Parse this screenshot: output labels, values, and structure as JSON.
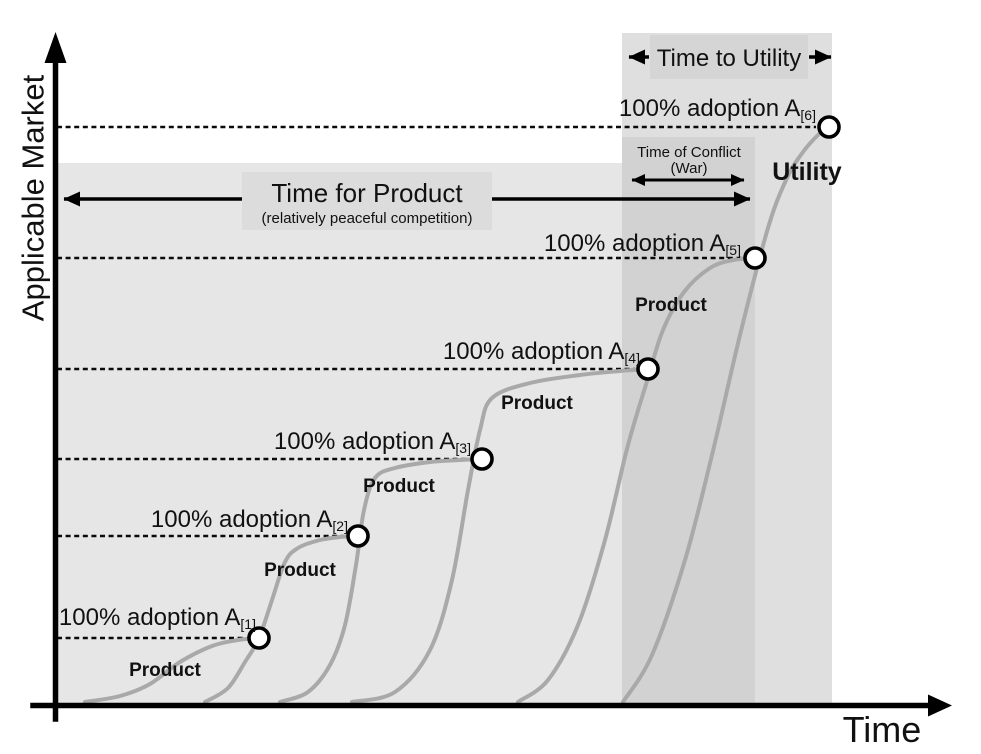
{
  "axes": {
    "y_label": "Applicable Market",
    "x_label": "Time"
  },
  "annotations": {
    "time_for_product": {
      "title": "Time for Product",
      "subtitle": "(relatively peaceful competition)"
    },
    "time_to_utility": {
      "label": "Time to Utility"
    },
    "time_of_conflict": {
      "line1": "Time of Conflict",
      "line2": "(War)"
    }
  },
  "colors": {
    "product_region": "#e6e6e6",
    "utility_band": "#dfdfdf",
    "conflict_overlap": "#d2d2d2",
    "label_box": "#dcdcdc",
    "banner_box": "#d5d5d5",
    "curve": "#a9a9a9",
    "ink": "#111111"
  },
  "chart_data": {
    "type": "line",
    "title": "",
    "xlabel": "Time",
    "ylabel": "Applicable Market",
    "description": "Six successive S-shaped diffusion curves; each activity evolves until 100% adoption of that act. Early stages are Product (relatively peaceful competition); the final curve reaches Utility after a time of conflict (war).",
    "grid": false,
    "curves": [
      {
        "name": "A[1]",
        "stage_label": "Product",
        "adoption_label": "100% adoption A",
        "adoption_sub": "[1]",
        "points": [
          [
            85,
            702
          ],
          [
            120,
            696
          ],
          [
            150,
            684
          ],
          [
            180,
            662
          ],
          [
            212,
            646
          ],
          [
            238,
            640
          ],
          [
            259,
            638
          ]
        ]
      },
      {
        "name": "A[2]",
        "stage_label": "Product",
        "adoption_label": "100% adoption A",
        "adoption_sub": "[2]",
        "points": [
          [
            205,
            702
          ],
          [
            228,
            688
          ],
          [
            245,
            662
          ],
          [
            259,
            638
          ],
          [
            272,
            600
          ],
          [
            285,
            562
          ],
          [
            298,
            548
          ],
          [
            320,
            540
          ],
          [
            340,
            537
          ],
          [
            358,
            536
          ]
        ]
      },
      {
        "name": "A[3]",
        "stage_label": "Product",
        "adoption_label": "100% adoption A",
        "adoption_sub": "[3]",
        "points": [
          [
            280,
            702
          ],
          [
            308,
            692
          ],
          [
            330,
            665
          ],
          [
            345,
            625
          ],
          [
            356,
            565
          ],
          [
            364,
            510
          ],
          [
            375,
            478
          ],
          [
            395,
            468
          ],
          [
            430,
            462
          ],
          [
            460,
            460
          ],
          [
            482,
            459
          ]
        ]
      },
      {
        "name": "A[4]",
        "stage_label": "Product",
        "adoption_label": "100% adoption A",
        "adoption_sub": "[4]",
        "points": [
          [
            352,
            702
          ],
          [
            395,
            692
          ],
          [
            430,
            650
          ],
          [
            452,
            580
          ],
          [
            468,
            490
          ],
          [
            480,
            430
          ],
          [
            492,
            398
          ],
          [
            530,
            383
          ],
          [
            580,
            375
          ],
          [
            620,
            371
          ],
          [
            648,
            369
          ]
        ]
      },
      {
        "name": "A[5]",
        "stage_label": "Product",
        "adoption_label": "100% adoption A",
        "adoption_sub": "[5]",
        "points": [
          [
            518,
            702
          ],
          [
            548,
            680
          ],
          [
            578,
            625
          ],
          [
            605,
            540
          ],
          [
            628,
            445
          ],
          [
            648,
            378
          ],
          [
            663,
            330
          ],
          [
            684,
            292
          ],
          [
            710,
            268
          ],
          [
            733,
            260
          ],
          [
            755,
            258
          ]
        ]
      },
      {
        "name": "A[6]",
        "stage_label": "Utility",
        "adoption_label": "100% adoption A",
        "adoption_sub": "[6]",
        "points": [
          [
            623,
            702
          ],
          [
            652,
            655
          ],
          [
            685,
            560
          ],
          [
            712,
            455
          ],
          [
            740,
            335
          ],
          [
            768,
            228
          ],
          [
            787,
            178
          ],
          [
            803,
            152
          ],
          [
            818,
            135
          ],
          [
            829,
            127
          ]
        ]
      }
    ]
  }
}
